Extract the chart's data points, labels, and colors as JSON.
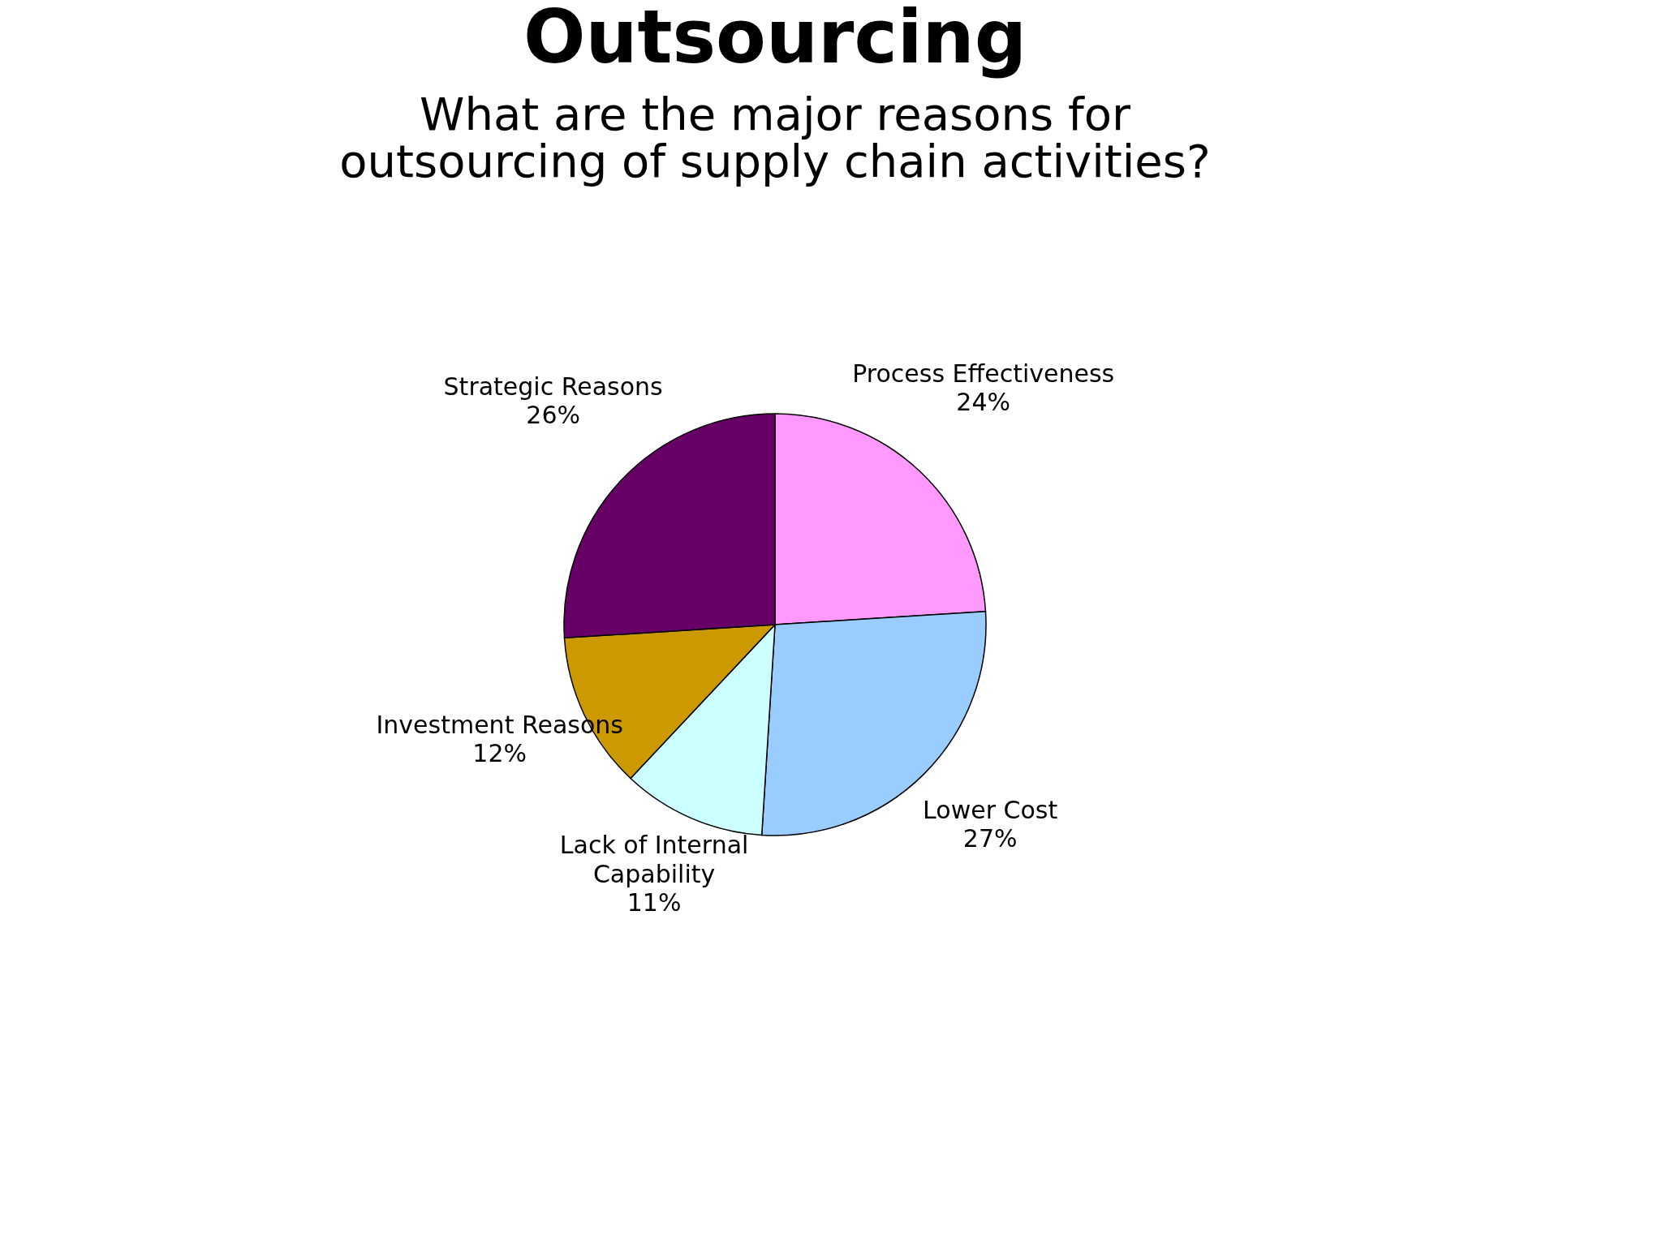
{
  "chart_data": {
    "type": "pie",
    "title": "Outsourcing",
    "subtitle": "What are the major reasons for outsourcing of supply chain activities?",
    "categories": [
      "Process Effectiveness",
      "Lower Cost",
      "Lack of Internal Capability",
      "Investment Reasons",
      "Strategic Reasons"
    ],
    "values": [
      24,
      27,
      11,
      12,
      26
    ],
    "colors": [
      "#ff99ff",
      "#99ccff",
      "#ccffff",
      "#cc9900",
      "#660066"
    ],
    "value_labels": [
      "24%",
      "27%",
      "11%",
      "12%",
      "26%"
    ],
    "legend": false
  }
}
